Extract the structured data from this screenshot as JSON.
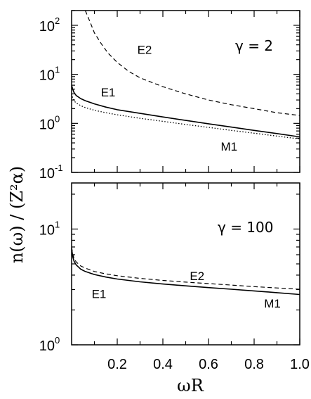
{
  "figure": {
    "xlabel": "ωR",
    "ylabel": "n(ω) / (Z²α)"
  },
  "chart_data": [
    {
      "type": "line",
      "panel": "top",
      "title": "",
      "annotation": "γ = 2",
      "xlim": [
        0,
        1.0
      ],
      "ylim": [
        0.1,
        200
      ],
      "yscale": "log",
      "xticks": [
        0.2,
        0.4,
        0.6,
        0.8,
        1.0
      ],
      "xtick_labels": [],
      "yticks": [
        {
          "value": 0.1,
          "base": "10",
          "exp": "-1"
        },
        {
          "value": 1,
          "base": "10",
          "exp": "0"
        },
        {
          "value": 10,
          "base": "10",
          "exp": "1"
        },
        {
          "value": 100,
          "base": "10",
          "exp": "2"
        }
      ],
      "grid": false,
      "series": [
        {
          "name": "E2",
          "style": "dashed",
          "x": [
            0.06,
            0.08,
            0.1,
            0.13,
            0.16,
            0.2,
            0.25,
            0.3,
            0.4,
            0.5,
            0.6,
            0.7,
            0.8,
            0.9,
            1.0
          ],
          "y": [
            200,
            120,
            70,
            42,
            27,
            17.5,
            11.5,
            8.5,
            5.6,
            4.0,
            3.0,
            2.4,
            2.0,
            1.65,
            1.45
          ],
          "label_pos": [
            0.32,
            32
          ]
        },
        {
          "name": "E1",
          "style": "solid",
          "x": [
            0.0,
            0.005,
            0.01,
            0.02,
            0.04,
            0.06,
            0.1,
            0.15,
            0.2,
            0.3,
            0.4,
            0.5,
            0.6,
            0.7,
            0.8,
            0.9,
            1.0
          ],
          "y": [
            6.0,
            5.0,
            4.3,
            3.7,
            3.2,
            2.9,
            2.5,
            2.15,
            1.9,
            1.6,
            1.35,
            1.15,
            0.98,
            0.84,
            0.72,
            0.62,
            0.53
          ],
          "label_pos": [
            0.16,
            4.3
          ]
        },
        {
          "name": "M1",
          "style": "dotted",
          "x": [
            0.0,
            0.005,
            0.01,
            0.02,
            0.04,
            0.06,
            0.1,
            0.15,
            0.2,
            0.3,
            0.4,
            0.5,
            0.6,
            0.7,
            0.8,
            0.9,
            1.0
          ],
          "y": [
            4.0,
            3.3,
            2.9,
            2.6,
            2.3,
            2.1,
            1.85,
            1.65,
            1.5,
            1.27,
            1.1,
            0.95,
            0.83,
            0.72,
            0.63,
            0.55,
            0.48
          ],
          "label_pos": [
            0.69,
            0.34
          ]
        }
      ]
    },
    {
      "type": "line",
      "panel": "bottom",
      "title": "",
      "annotation": "γ = 100",
      "xlim": [
        0,
        1.0
      ],
      "ylim": [
        1,
        25
      ],
      "yscale": "log",
      "xticks": [
        0.2,
        0.4,
        0.6,
        0.8,
        1.0
      ],
      "xtick_labels": [
        "0.2",
        "0.4",
        "0.6",
        "0.8",
        "1.0"
      ],
      "yticks": [
        {
          "value": 1,
          "base": "10",
          "exp": "0"
        },
        {
          "value": 10,
          "base": "10",
          "exp": "1"
        }
      ],
      "grid": false,
      "series": [
        {
          "name": "E2",
          "style": "dashed",
          "x": [
            0.0,
            0.005,
            0.01,
            0.02,
            0.04,
            0.06,
            0.1,
            0.15,
            0.2,
            0.3,
            0.4,
            0.5,
            0.6,
            0.7,
            0.8,
            0.9,
            1.0
          ],
          "y": [
            7.0,
            6.1,
            5.6,
            5.2,
            4.8,
            4.6,
            4.3,
            4.1,
            3.95,
            3.75,
            3.6,
            3.48,
            3.38,
            3.28,
            3.18,
            3.1,
            3.02
          ],
          "label_pos": [
            0.55,
            3.95
          ]
        },
        {
          "name": "E1",
          "style": "solid",
          "x": [
            0.0,
            0.005,
            0.01,
            0.02,
            0.04,
            0.06,
            0.1,
            0.15,
            0.2,
            0.3,
            0.4,
            0.5,
            0.6,
            0.7,
            0.8,
            0.9,
            1.0
          ],
          "y": [
            6.8,
            5.8,
            5.3,
            4.9,
            4.5,
            4.3,
            4.05,
            3.85,
            3.7,
            3.5,
            3.35,
            3.23,
            3.12,
            3.02,
            2.92,
            2.82,
            2.72
          ],
          "label_pos": [
            0.12,
            2.75
          ]
        },
        {
          "name": "M1",
          "style": "solid",
          "x": [],
          "y": [],
          "label_pos": [
            0.88,
            2.28
          ]
        }
      ]
    }
  ]
}
